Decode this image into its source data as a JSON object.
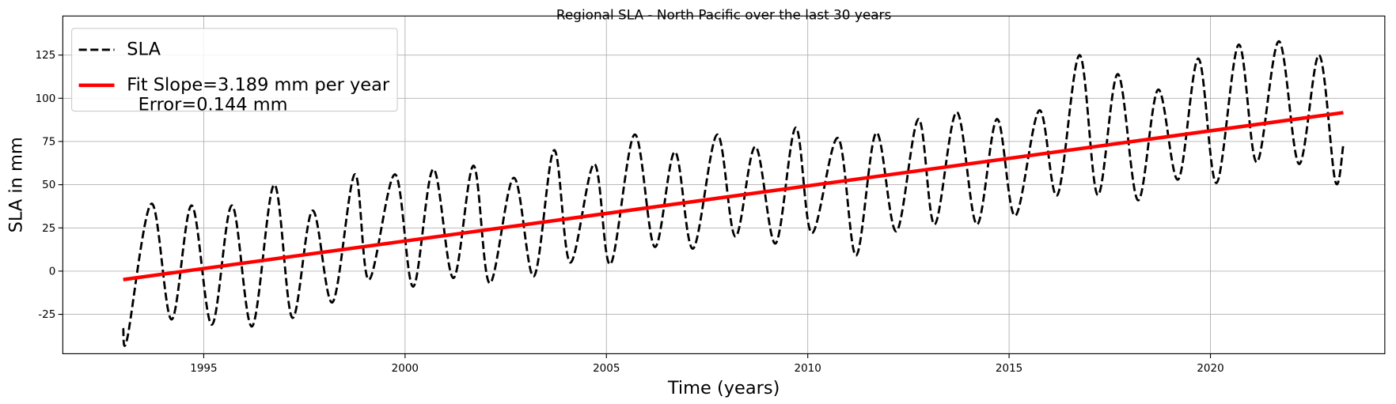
{
  "chart_data": {
    "type": "line",
    "title": "Regional SLA - North Pacific over the last 30 years",
    "xlabel": "Time (years)",
    "ylabel": "SLA in mm",
    "xlim": [
      1991.5,
      2024.33
    ],
    "ylim": [
      -47.8,
      147.6
    ],
    "xticks": [
      1995,
      2000,
      2005,
      2010,
      2015,
      2020
    ],
    "yticks": [
      -25,
      0,
      25,
      50,
      75,
      100,
      125
    ],
    "grid": true,
    "legend": "upper left",
    "series": [
      {
        "name": "SLA",
        "color": "#000000",
        "style": "dashed",
        "x": [
          1993.0,
          1993.1,
          1993.7,
          1994.2,
          1994.7,
          1995.2,
          1995.7,
          1996.2,
          1996.75,
          1997.2,
          1997.7,
          1998.2,
          1998.75,
          1999.1,
          1999.75,
          2000.2,
          2000.7,
          2001.2,
          2001.7,
          2002.1,
          2002.7,
          2003.2,
          2003.7,
          2004.1,
          2004.7,
          2005.1,
          2005.7,
          2006.2,
          2006.7,
          2007.15,
          2007.75,
          2008.2,
          2008.7,
          2009.2,
          2009.7,
          2010.1,
          2010.75,
          2011.2,
          2011.7,
          2012.2,
          2012.75,
          2013.15,
          2013.7,
          2014.2,
          2014.7,
          2015.15,
          2015.75,
          2016.2,
          2016.75,
          2017.2,
          2017.7,
          2018.2,
          2018.7,
          2019.2,
          2019.7,
          2020.15,
          2020.7,
          2021.15,
          2021.7,
          2022.2,
          2022.7,
          2023.1,
          2023.3
        ],
        "values": [
          -33,
          -39,
          39,
          -28,
          38,
          -31,
          38,
          -32,
          50,
          -27,
          35,
          -18,
          56,
          -5,
          56,
          -9,
          59,
          -4,
          61,
          -7,
          54,
          -3,
          70,
          5,
          62,
          4,
          79,
          14,
          69,
          13,
          79,
          20,
          72,
          16,
          83,
          22,
          77,
          9,
          80,
          23,
          88,
          27,
          92,
          27,
          88,
          32,
          93,
          44,
          125,
          44,
          114,
          41,
          105,
          53,
          123,
          51,
          131,
          63,
          133,
          62,
          125,
          52,
          73
        ]
      },
      {
        "name": "Fit Slope=3.189 mm per year\n  Error=0.144 mm",
        "color": "#ff0000",
        "style": "solid",
        "x": [
          1993.0,
          2023.3
        ],
        "values": [
          -4.9,
          91.7
        ]
      }
    ]
  }
}
